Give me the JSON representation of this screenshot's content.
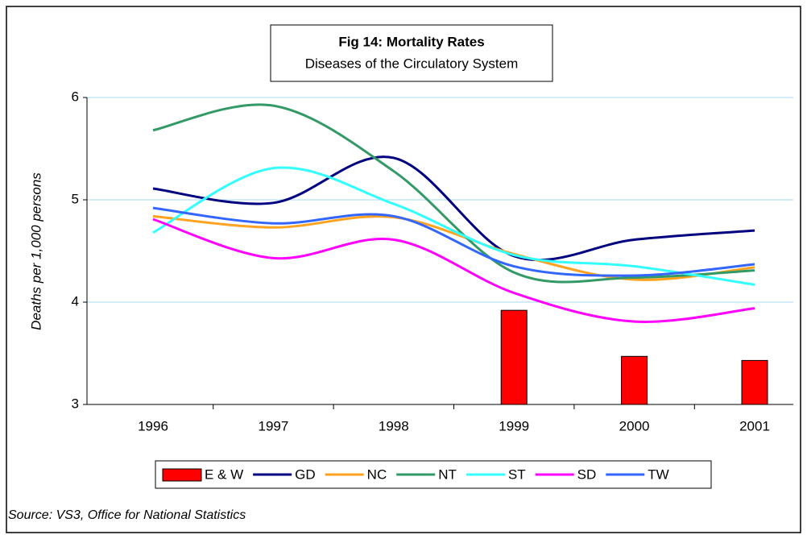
{
  "chart_data": {
    "type": "bar-line",
    "title": "Fig 14: Mortality Rates",
    "subtitle": "Diseases of the Circulatory System",
    "y_label": "Deaths per 1,000 persons",
    "source": "Source: VS3, Office for National Statistics",
    "categories": [
      "1996",
      "1997",
      "1998",
      "1999",
      "2000",
      "2001"
    ],
    "ylim": [
      3,
      6
    ],
    "yticks": [
      3,
      4,
      5,
      6
    ],
    "grid": true,
    "legend": "bottom",
    "series": [
      {
        "name": "E & W",
        "type": "bar",
        "color": "#ff0000",
        "values": [
          null,
          null,
          null,
          3.92,
          3.47,
          3.43
        ]
      },
      {
        "name": "GD",
        "type": "line",
        "color": "#000080",
        "values": [
          5.11,
          4.97,
          5.41,
          4.45,
          4.61,
          4.7
        ]
      },
      {
        "name": "NC",
        "type": "line",
        "color": "#ffa21f",
        "values": [
          4.84,
          4.73,
          4.83,
          4.47,
          4.22,
          4.34
        ]
      },
      {
        "name": "NT",
        "type": "line",
        "color": "#339966",
        "values": [
          5.68,
          5.92,
          5.28,
          4.29,
          4.24,
          4.31
        ]
      },
      {
        "name": "ST",
        "type": "line",
        "color": "#33ffff",
        "values": [
          4.68,
          5.31,
          4.96,
          4.46,
          4.35,
          4.17
        ]
      },
      {
        "name": "SD",
        "type": "line",
        "color": "#ff00ff",
        "values": [
          4.81,
          4.43,
          4.61,
          4.09,
          3.81,
          3.94
        ]
      },
      {
        "name": "TW",
        "type": "line",
        "color": "#3366ff",
        "values": [
          4.92,
          4.77,
          4.84,
          4.35,
          4.26,
          4.37
        ]
      }
    ]
  }
}
